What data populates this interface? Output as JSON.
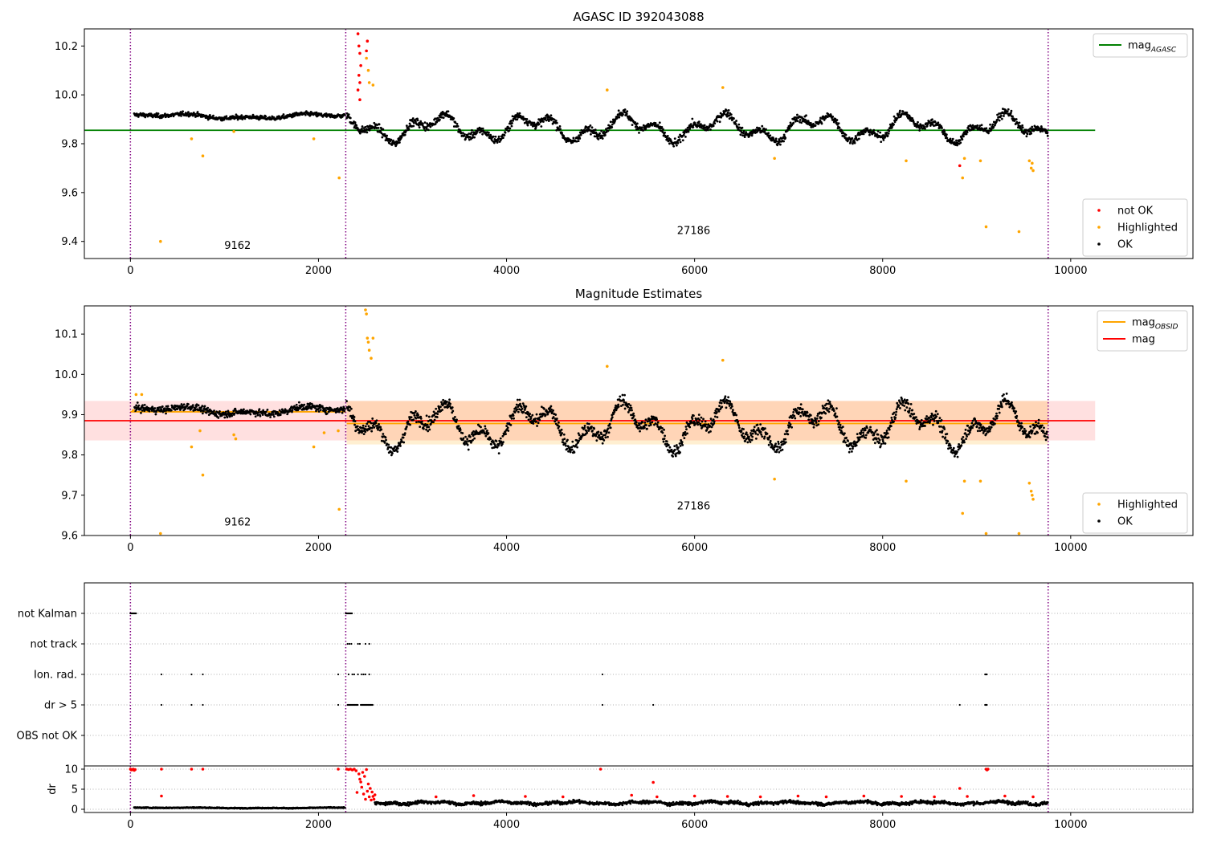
{
  "chart_data": [
    {
      "type": "scatter",
      "title": "AGASC ID 392043088",
      "xlim": [
        -490,
        11300
      ],
      "ylim": [
        9.33,
        10.27
      ],
      "x_ticks": [
        0,
        2000,
        4000,
        6000,
        8000,
        10000
      ],
      "y_ticks": [
        9.4,
        9.6,
        9.8,
        10.0,
        10.2
      ],
      "y_tick_labels": [
        "9.4",
        "9.6",
        "9.8",
        "10.0",
        "10.2"
      ],
      "obsid_boundaries": [
        0,
        2290,
        9760
      ],
      "obsid_labels": [
        {
          "text": "9162",
          "x": 1140,
          "y": 9.37
        },
        {
          "text": "27186",
          "x": 5990,
          "y": 9.43
        }
      ],
      "reference_lines": [
        {
          "name": "mag",
          "subscript": "AGASC",
          "color": "#008000",
          "x_start": -490,
          "x_end": 10260,
          "y": 9.855
        }
      ],
      "legend_upper": {
        "placement": "upper-right",
        "entries": [
          {
            "label": "mag",
            "subscript": "AGASC",
            "color": "#008000",
            "marker": "line"
          }
        ]
      },
      "legend_lower": {
        "placement": "lower-right",
        "entries": [
          {
            "label": "not OK",
            "color": "#ff0000",
            "marker": "dot"
          },
          {
            "label": "Highlighted",
            "color": "#ffa500",
            "marker": "dot"
          },
          {
            "label": "OK",
            "color": "#000000",
            "marker": "dot"
          }
        ]
      },
      "series": [
        {
          "name": "not OK",
          "color": "#ff0000",
          "points": [
            [
              2420,
              10.25
            ],
            [
              2430,
              10.2
            ],
            [
              2440,
              10.17
            ],
            [
              2450,
              10.12
            ],
            [
              2430,
              10.08
            ],
            [
              2440,
              10.05
            ],
            [
              2420,
              10.02
            ],
            [
              2440,
              9.98
            ],
            [
              2520,
              10.22
            ],
            [
              2510,
              10.18
            ],
            [
              8820,
              9.71
            ]
          ]
        },
        {
          "name": "Highlighted",
          "color": "#ffa500",
          "points": [
            [
              320,
              9.4
            ],
            [
              650,
              9.82
            ],
            [
              770,
              9.75
            ],
            [
              1100,
              9.85
            ],
            [
              1950,
              9.82
            ],
            [
              2220,
              9.66
            ],
            [
              2510,
              10.15
            ],
            [
              2530,
              10.1
            ],
            [
              2540,
              10.05
            ],
            [
              2580,
              10.04
            ],
            [
              5070,
              10.02
            ],
            [
              6300,
              10.03
            ],
            [
              6850,
              9.74
            ],
            [
              8250,
              9.73
            ],
            [
              8850,
              9.66
            ],
            [
              8870,
              9.74
            ],
            [
              9040,
              9.73
            ],
            [
              9100,
              9.46
            ],
            [
              9450,
              9.44
            ],
            [
              9560,
              9.73
            ],
            [
              9580,
              9.7
            ],
            [
              9590,
              9.72
            ],
            [
              9600,
              9.69
            ]
          ]
        },
        {
          "name": "OK",
          "color": "#000000",
          "segments": [
            {
              "x0": 40,
              "x1": 2285,
              "mean": 9.912,
              "amp": 0.012,
              "noise": 0.012,
              "cycle": 260
            },
            {
              "x0": 2300,
              "x1": 9760,
              "mean": 9.865,
              "amp": 0.065,
              "noise": 0.022,
              "cycle": 160
            }
          ]
        }
      ]
    },
    {
      "type": "scatter",
      "title": "Magnitude Estimates",
      "xlim": [
        -490,
        11300
      ],
      "ylim": [
        9.6,
        10.17
      ],
      "x_ticks": [
        0,
        2000,
        4000,
        6000,
        8000,
        10000
      ],
      "y_ticks": [
        9.6,
        9.7,
        9.8,
        9.9,
        10.0,
        10.1
      ],
      "y_tick_labels": [
        "9.6",
        "9.7",
        "9.8",
        "9.9",
        "10.0",
        "10.1"
      ],
      "obsid_boundaries": [
        0,
        2290,
        9760
      ],
      "obsid_labels": [
        {
          "text": "9162",
          "x": 1140,
          "y": 9.625
        },
        {
          "text": "27186",
          "x": 5990,
          "y": 9.665
        }
      ],
      "bands": [
        {
          "color": "#ff0000",
          "opacity": 0.12,
          "x_start": -490,
          "x_end": 10260,
          "y_low": 9.836,
          "y_high": 9.934
        },
        {
          "color": "#ffa500",
          "opacity": 0.18,
          "x_start": 2300,
          "x_end": 9760,
          "y_low": 9.826,
          "y_high": 9.934
        }
      ],
      "reference_lines": [
        {
          "name": "mag",
          "subscript": "OBSID",
          "color": "#ffa500",
          "x_start": 0,
          "x_end": 2290,
          "y": 9.907
        },
        {
          "name": "mag",
          "subscript": "OBSID",
          "color": "#ffa500",
          "x_start": 2300,
          "x_end": 9760,
          "y": 9.878
        },
        {
          "name": "mag",
          "subscript": "",
          "color": "#ff0000",
          "x_start": -490,
          "x_end": 10260,
          "y": 9.885
        }
      ],
      "legend_upper": {
        "placement": "upper-right",
        "entries": [
          {
            "label": "mag",
            "subscript": "OBSID",
            "color": "#ffa500",
            "marker": "line"
          },
          {
            "label": "mag",
            "subscript": "",
            "color": "#ff0000",
            "marker": "line"
          }
        ]
      },
      "legend_lower": {
        "placement": "lower-right",
        "entries": [
          {
            "label": "Highlighted",
            "color": "#ffa500",
            "marker": "dot"
          },
          {
            "label": "OK",
            "color": "#000000",
            "marker": "dot"
          }
        ]
      },
      "series": [
        {
          "name": "Highlighted",
          "color": "#ffa500",
          "points": [
            [
              30,
              9.91
            ],
            [
              60,
              9.95
            ],
            [
              120,
              9.95
            ],
            [
              320,
              9.605
            ],
            [
              650,
              9.82
            ],
            [
              740,
              9.86
            ],
            [
              770,
              9.75
            ],
            [
              1100,
              9.85
            ],
            [
              1120,
              9.84
            ],
            [
              1950,
              9.82
            ],
            [
              2060,
              9.855
            ],
            [
              2210,
              9.86
            ],
            [
              2220,
              9.665
            ],
            [
              2500,
              10.16
            ],
            [
              2510,
              10.15
            ],
            [
              2520,
              10.09
            ],
            [
              2530,
              10.08
            ],
            [
              2540,
              10.06
            ],
            [
              2560,
              10.04
            ],
            [
              2580,
              10.09
            ],
            [
              5070,
              10.02
            ],
            [
              6300,
              10.035
            ],
            [
              6850,
              9.74
            ],
            [
              8250,
              9.735
            ],
            [
              8850,
              9.655
            ],
            [
              8870,
              9.735
            ],
            [
              9040,
              9.735
            ],
            [
              9100,
              9.605
            ],
            [
              9450,
              9.605
            ],
            [
              9560,
              9.73
            ],
            [
              9580,
              9.71
            ],
            [
              9590,
              9.7
            ],
            [
              9600,
              9.69
            ]
          ]
        },
        {
          "name": "OK",
          "color": "#000000",
          "segments": [
            {
              "x0": 40,
              "x1": 2285,
              "mean": 9.91,
              "amp": 0.012,
              "noise": 0.012,
              "cycle": 260
            },
            {
              "x0": 2300,
              "x1": 9760,
              "mean": 9.872,
              "amp": 0.065,
              "noise": 0.022,
              "cycle": 160
            }
          ]
        }
      ]
    },
    {
      "type": "scatter",
      "title": "",
      "xlim": [
        -490,
        11300
      ],
      "obsid_boundaries": [
        0,
        2290,
        9760
      ],
      "flag_rows": [
        "not Kalman",
        "not track",
        "Ion. rad.",
        "dr > 5",
        "OBS not OK"
      ],
      "flags": [
        {
          "row": "not Kalman",
          "ranges": [
            [
              0,
              60
            ],
            [
              2290,
              2360
            ]
          ],
          "points": []
        },
        {
          "row": "not track",
          "ranges": [],
          "points": [
            2310,
            2330,
            2350,
            2420,
            2440,
            2500,
            2540
          ]
        },
        {
          "row": "Ion. rad.",
          "ranges": [
            [
              9090,
              9110
            ]
          ],
          "points": [
            330,
            650,
            770,
            2210,
            2320,
            2360,
            2380,
            2420,
            2460,
            2480,
            2500,
            2540,
            5020
          ]
        },
        {
          "row": "dr > 5",
          "ranges": [
            [
              2310,
              2420
            ],
            [
              2450,
              2580
            ],
            [
              9090,
              9110
            ]
          ],
          "points": [
            330,
            650,
            770,
            2210,
            5020,
            5560,
            8820
          ]
        },
        {
          "row": "OBS not OK",
          "ranges": [],
          "points": []
        }
      ]
    },
    {
      "type": "scatter",
      "title": "",
      "ylabel": "dr",
      "xlim": [
        -490,
        11300
      ],
      "ylim": [
        -0.8,
        10.8
      ],
      "x_ticks": [
        0,
        2000,
        4000,
        6000,
        8000,
        10000
      ],
      "y_ticks": [
        0,
        5,
        10
      ],
      "y_tick_labels": [
        "0",
        "5",
        "10"
      ],
      "obsid_boundaries": [
        0,
        2290,
        9760
      ],
      "series": [
        {
          "name": "OK",
          "color": "#000000",
          "segments": [
            {
              "x0": 40,
              "x1": 2285,
              "mean": 0.35,
              "amp": 0.1,
              "noise": 0.15,
              "cycle": 300
            },
            {
              "x0": 2600,
              "x1": 9760,
              "mean": 1.6,
              "amp": 0.4,
              "noise": 0.55,
              "cycle": 120
            }
          ]
        },
        {
          "name": "not OK",
          "color": "#ff0000",
          "points": [
            [
              0,
              10
            ],
            [
              10,
              9.8
            ],
            [
              20,
              9.9
            ],
            [
              30,
              10
            ],
            [
              40,
              9.7
            ],
            [
              50,
              9.9
            ],
            [
              330,
              10
            ],
            [
              330,
              3.3
            ],
            [
              650,
              10
            ],
            [
              770,
              10
            ],
            [
              2210,
              10
            ],
            [
              2300,
              10
            ],
            [
              2320,
              9.9
            ],
            [
              2340,
              10
            ],
            [
              2360,
              9.8
            ],
            [
              2380,
              10
            ],
            [
              2400,
              9.6
            ],
            [
              2410,
              4.2
            ],
            [
              2430,
              8.8
            ],
            [
              2440,
              7.5
            ],
            [
              2450,
              6.8
            ],
            [
              2460,
              5.5
            ],
            [
              2470,
              9.2
            ],
            [
              2480,
              3.8
            ],
            [
              2490,
              8.2
            ],
            [
              2500,
              2.5
            ],
            [
              2510,
              9.9
            ],
            [
              2520,
              4.5
            ],
            [
              2530,
              6.3
            ],
            [
              2540,
              3.1
            ],
            [
              2550,
              5.2
            ],
            [
              2560,
              2.3
            ],
            [
              2570,
              4.3
            ],
            [
              2580,
              3.2
            ],
            [
              2590,
              2.5
            ],
            [
              2600,
              3.6
            ],
            [
              3250,
              3.1
            ],
            [
              3650,
              3.4
            ],
            [
              4200,
              3.2
            ],
            [
              4600,
              3.1
            ],
            [
              5000,
              10
            ],
            [
              5330,
              3.5
            ],
            [
              5560,
              6.7
            ],
            [
              5600,
              3.1
            ],
            [
              6000,
              3.3
            ],
            [
              6350,
              3.2
            ],
            [
              6700,
              3.1
            ],
            [
              7100,
              3.3
            ],
            [
              7400,
              3.1
            ],
            [
              7800,
              3.3
            ],
            [
              8200,
              3.2
            ],
            [
              8550,
              3.1
            ],
            [
              8820,
              5.2
            ],
            [
              8900,
              3.2
            ],
            [
              9100,
              10
            ],
            [
              9110,
              9.8
            ],
            [
              9120,
              10
            ],
            [
              9300,
              3.3
            ],
            [
              9600,
              3.1
            ]
          ]
        }
      ]
    }
  ]
}
